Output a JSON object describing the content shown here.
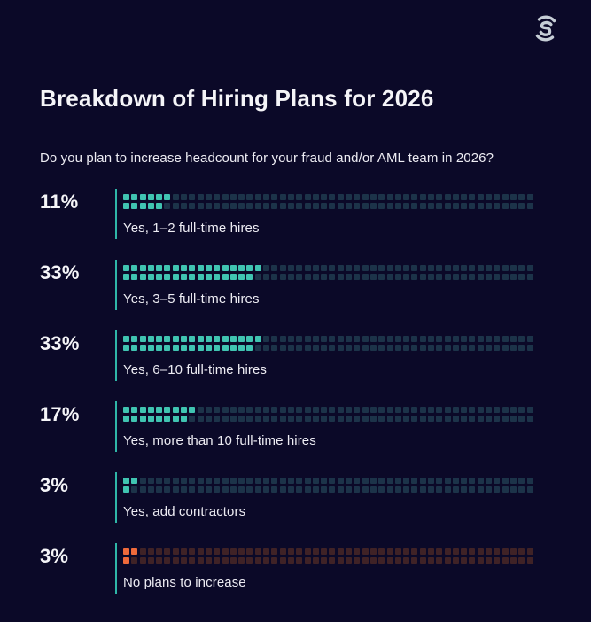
{
  "theme": {
    "bg": "#0b0928",
    "text": "#f5f5f8",
    "text_soft": "#edecf3",
    "teal": "#40c4b1",
    "teal_dim": "#1c3349",
    "orange": "#ef6a3b",
    "orange_dim": "#3f2226",
    "rule": "#2fb6a8",
    "logo": "#c6ced6"
  },
  "header": {
    "logo_name": "sardine-logo",
    "title": "Breakdown of Hiring Plans for 2026",
    "subtitle": "Do you plan to increase headcount for your fraud and/or AML team in 2026?"
  },
  "chart_data": {
    "type": "bar",
    "style": "waffle-dot-bar",
    "title": "Breakdown of Hiring Plans for 2026",
    "question": "Do you plan to increase headcount for your fraud and/or AML team in 2026?",
    "xlabel": "",
    "ylabel": "",
    "xlim": [
      0,
      100
    ],
    "unit": "%",
    "grid": {
      "columns": 50,
      "rows": 2,
      "cell_equals_percent": 1
    },
    "legend": "none",
    "categories": [
      "Yes, 1–2 full-time hires",
      "Yes, 3–5 full-time hires",
      "Yes, 6–10 full-time hires",
      "Yes, more than 10 full-time hires",
      "Yes, add contractors",
      "No plans to increase"
    ],
    "values": [
      11,
      33,
      33,
      17,
      3,
      3
    ],
    "value_labels": [
      "11%",
      "33%",
      "33%",
      "17%",
      "3%",
      "3%"
    ],
    "colors": [
      "teal",
      "teal",
      "teal",
      "teal",
      "teal",
      "orange"
    ]
  }
}
